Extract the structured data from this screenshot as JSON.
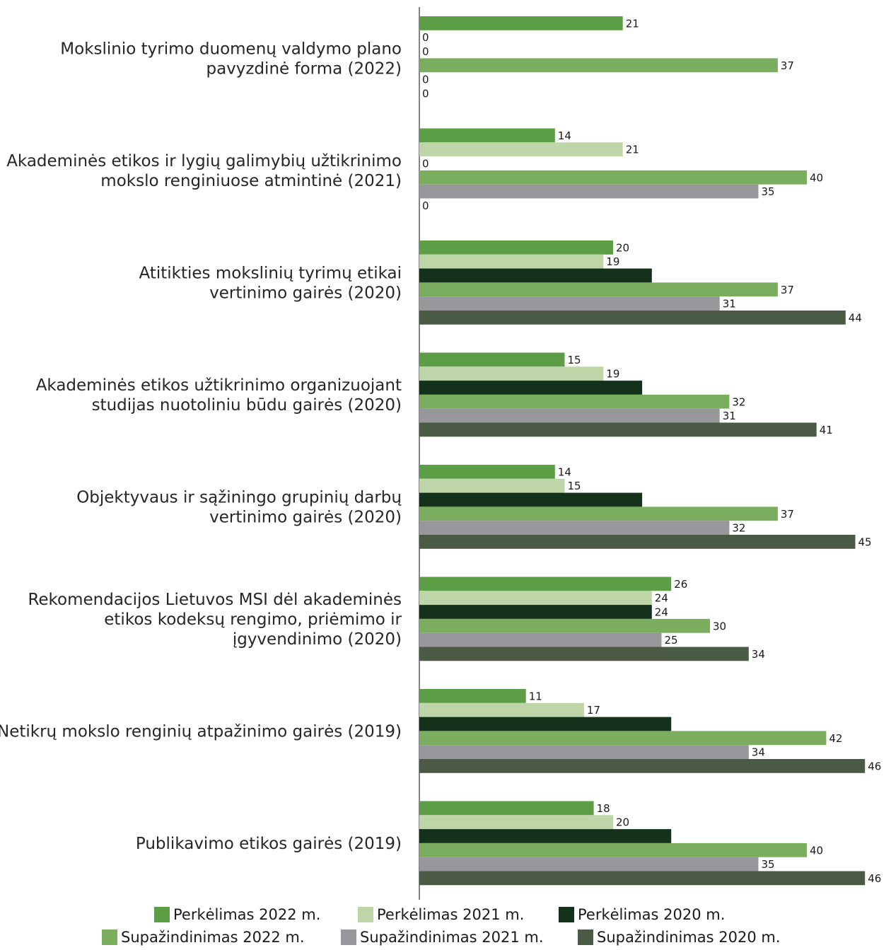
{
  "chart_data": {
    "type": "bar",
    "orientation": "horizontal",
    "categories": [
      [
        "Mokslinio tyrimo duomenų valdymo plano",
        "pavyzdinė forma (2022)"
      ],
      [
        "Akademinės etikos ir lygių galimybių užtikrinimo",
        "mokslo renginiuose atmintinė (2021)"
      ],
      [
        "Atitikties mokslinių tyrimų etikai",
        "vertinimo gairės (2020)"
      ],
      [
        "Akademinės etikos užtikrinimo organizuojant",
        "studijas nuotoliniu būdu gairės (2020)"
      ],
      [
        "Objektyvaus ir sąžiningo grupinių darbų",
        "vertinimo gairės (2020)"
      ],
      [
        "Rekomendacijos Lietuvos MSI dėl akademinės",
        "etikos kodeksų rengimo, priėmimo ir",
        "įgyvendinimo (2020)"
      ],
      [
        "Netikrų mokslo renginių atpažinimo gairės (2019)"
      ],
      [
        "Publikavimo etikos gairės (2019)"
      ]
    ],
    "series": [
      {
        "name": "Perkėlimas 2022 m.",
        "color": "#5b9e45",
        "values": [
          21,
          14,
          20,
          15,
          14,
          26,
          11,
          18
        ],
        "labels": [
          "21",
          "14",
          "20",
          "15",
          "14",
          "26",
          "11",
          "18"
        ]
      },
      {
        "name": "Perkėlimas 2021 m.",
        "color": "#bed5a8",
        "values": [
          0,
          21,
          19,
          19,
          15,
          24,
          17,
          20
        ],
        "labels": [
          "0",
          "21",
          "19",
          "19",
          "15",
          "24",
          "17",
          "20"
        ]
      },
      {
        "name": "Perkėlimas 2020 m.",
        "color": "#14311b",
        "values": [
          0,
          0,
          24,
          23,
          23,
          24,
          26,
          26
        ],
        "labels": [
          "0",
          "0",
          "",
          "",
          "",
          "24",
          "",
          ""
        ]
      },
      {
        "name": "Supažindinimas 2022 m.",
        "color": "#7aad5e",
        "values": [
          37,
          40,
          37,
          32,
          37,
          30,
          42,
          40
        ],
        "labels": [
          "37",
          "40",
          "37",
          "32",
          "37",
          "30",
          "42",
          "40"
        ]
      },
      {
        "name": "Supažindinimas 2021 m.",
        "color": "#98979c",
        "values": [
          0,
          35,
          31,
          31,
          32,
          25,
          34,
          35
        ],
        "labels": [
          "0",
          "35",
          "31",
          "31",
          "32",
          "25",
          "34",
          "35"
        ]
      },
      {
        "name": "Supažindinimas 2020 m.",
        "color": "#4b5a45",
        "values": [
          0,
          0,
          44,
          41,
          45,
          34,
          46,
          46
        ],
        "labels": [
          "0",
          "0",
          "44",
          "41",
          "45",
          "34",
          "46",
          "46"
        ]
      }
    ],
    "xlim": [
      0,
      46
    ],
    "grid": false,
    "legend_position": "bottom"
  }
}
